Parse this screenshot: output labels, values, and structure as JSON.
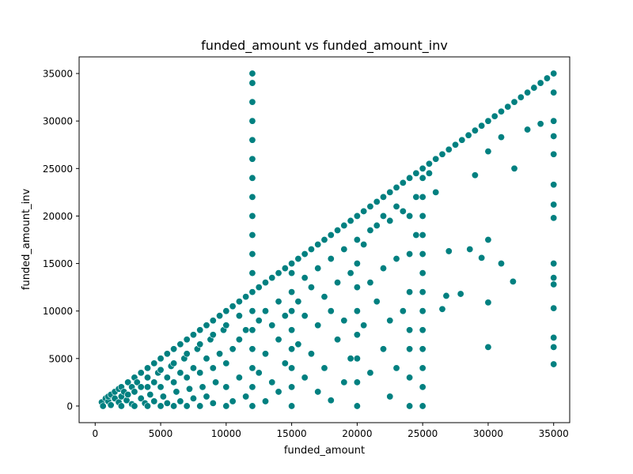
{
  "chart_data": {
    "type": "scatter",
    "title": "funded_amount vs funded_amount_inv",
    "xlabel": "funded_amount",
    "ylabel": "funded_amount_inv",
    "xlim": [
      -1225,
      36225
    ],
    "ylim": [
      -1750,
      36750
    ],
    "xticks": [
      {
        "value": 0,
        "label": "0"
      },
      {
        "value": 5000,
        "label": "5000"
      },
      {
        "value": 10000,
        "label": "10000"
      },
      {
        "value": 15000,
        "label": "15000"
      },
      {
        "value": 20000,
        "label": "20000"
      },
      {
        "value": 25000,
        "label": "25000"
      },
      {
        "value": 30000,
        "label": "30000"
      },
      {
        "value": 35000,
        "label": "35000"
      }
    ],
    "yticks": [
      {
        "value": 0,
        "label": "0"
      },
      {
        "value": 5000,
        "label": "5000"
      },
      {
        "value": 10000,
        "label": "10000"
      },
      {
        "value": 15000,
        "label": "15000"
      },
      {
        "value": 20000,
        "label": "20000"
      },
      {
        "value": 25000,
        "label": "25000"
      },
      {
        "value": 30000,
        "label": "30000"
      },
      {
        "value": 35000,
        "label": "35000"
      }
    ],
    "grid": false,
    "legend": "none",
    "marker_color": "#008080",
    "marker_edge_color": "#ffffff",
    "points": [
      [
        500,
        400
      ],
      [
        600,
        0
      ],
      [
        800,
        800
      ],
      [
        1000,
        500
      ],
      [
        1000,
        1000
      ],
      [
        1200,
        100
      ],
      [
        1200,
        1200
      ],
      [
        1500,
        800
      ],
      [
        1500,
        1500
      ],
      [
        1800,
        400
      ],
      [
        1800,
        1800
      ],
      [
        2000,
        0
      ],
      [
        2000,
        1000
      ],
      [
        2000,
        2000
      ],
      [
        2200,
        1500
      ],
      [
        2400,
        600
      ],
      [
        2500,
        2500
      ],
      [
        2500,
        1200
      ],
      [
        2800,
        200
      ],
      [
        2800,
        2000
      ],
      [
        3000,
        0
      ],
      [
        3000,
        1500
      ],
      [
        3000,
        3000
      ],
      [
        3200,
        2500
      ],
      [
        3500,
        800
      ],
      [
        3500,
        3500
      ],
      [
        3500,
        2000
      ],
      [
        3800,
        300
      ],
      [
        4000,
        0
      ],
      [
        4000,
        2000
      ],
      [
        4000,
        4000
      ],
      [
        4000,
        3000
      ],
      [
        4200,
        1200
      ],
      [
        4500,
        4500
      ],
      [
        4500,
        2500
      ],
      [
        4500,
        500
      ],
      [
        4800,
        3500
      ],
      [
        5000,
        0
      ],
      [
        5000,
        2000
      ],
      [
        5000,
        5000
      ],
      [
        5000,
        3800
      ],
      [
        5200,
        1000
      ],
      [
        5500,
        5500
      ],
      [
        5500,
        3000
      ],
      [
        5500,
        300
      ],
      [
        5800,
        4200
      ],
      [
        6000,
        0
      ],
      [
        6000,
        2500
      ],
      [
        6000,
        6000
      ],
      [
        6000,
        4500
      ],
      [
        6200,
        1500
      ],
      [
        6500,
        6500
      ],
      [
        6500,
        3500
      ],
      [
        6500,
        500
      ],
      [
        6800,
        5000
      ],
      [
        7000,
        0
      ],
      [
        7000,
        3000
      ],
      [
        7000,
        7000
      ],
      [
        7000,
        5500
      ],
      [
        7200,
        1800
      ],
      [
        7500,
        7500
      ],
      [
        7500,
        4000
      ],
      [
        7500,
        800
      ],
      [
        7800,
        6000
      ],
      [
        8000,
        0
      ],
      [
        8000,
        3500
      ],
      [
        8000,
        8000
      ],
      [
        8000,
        6500
      ],
      [
        8200,
        2000
      ],
      [
        8500,
        8500
      ],
      [
        8500,
        5000
      ],
      [
        8500,
        1000
      ],
      [
        8800,
        7000
      ],
      [
        9000,
        300
      ],
      [
        9000,
        4000
      ],
      [
        9000,
        9000
      ],
      [
        9000,
        7500
      ],
      [
        9200,
        2500
      ],
      [
        9500,
        9500
      ],
      [
        9500,
        5500
      ],
      [
        9800,
        8000
      ],
      [
        10000,
        0
      ],
      [
        10000,
        4500
      ],
      [
        10000,
        10000
      ],
      [
        10000,
        8500
      ],
      [
        10000,
        2000
      ],
      [
        10500,
        10500
      ],
      [
        10500,
        6000
      ],
      [
        10500,
        500
      ],
      [
        11000,
        11000
      ],
      [
        11000,
        7000
      ],
      [
        11000,
        3000
      ],
      [
        11000,
        9500
      ],
      [
        11500,
        11500
      ],
      [
        11500,
        8000
      ],
      [
        11500,
        1000
      ],
      [
        12000,
        0
      ],
      [
        12000,
        2000
      ],
      [
        12000,
        4000
      ],
      [
        12000,
        6000
      ],
      [
        12000,
        8000
      ],
      [
        12000,
        10000
      ],
      [
        12000,
        12000
      ],
      [
        12000,
        14000
      ],
      [
        12000,
        16000
      ],
      [
        12000,
        18000
      ],
      [
        12000,
        20000
      ],
      [
        12000,
        22000
      ],
      [
        12000,
        24000
      ],
      [
        12000,
        26000
      ],
      [
        12000,
        28000
      ],
      [
        12000,
        30000
      ],
      [
        12000,
        32000
      ],
      [
        12000,
        34000
      ],
      [
        12000,
        35000
      ],
      [
        12500,
        12500
      ],
      [
        12500,
        9000
      ],
      [
        12500,
        3500
      ],
      [
        13000,
        13000
      ],
      [
        13000,
        10000
      ],
      [
        13000,
        5500
      ],
      [
        13000,
        500
      ],
      [
        13500,
        13500
      ],
      [
        13500,
        8500
      ],
      [
        13500,
        2500
      ],
      [
        14000,
        14000
      ],
      [
        14000,
        11000
      ],
      [
        14000,
        7000
      ],
      [
        14000,
        1500
      ],
      [
        14500,
        14500
      ],
      [
        14500,
        9500
      ],
      [
        14500,
        4500
      ],
      [
        15000,
        0
      ],
      [
        15000,
        2000
      ],
      [
        15000,
        4000
      ],
      [
        15000,
        6000
      ],
      [
        15000,
        8000
      ],
      [
        15000,
        10000
      ],
      [
        15000,
        12000
      ],
      [
        15000,
        14000
      ],
      [
        15000,
        15000
      ],
      [
        15500,
        15500
      ],
      [
        15500,
        11000
      ],
      [
        15500,
        6500
      ],
      [
        16000,
        16000
      ],
      [
        16000,
        13500
      ],
      [
        16000,
        9500
      ],
      [
        16000,
        3000
      ],
      [
        16500,
        16500
      ],
      [
        16500,
        12500
      ],
      [
        16500,
        5500
      ],
      [
        17000,
        17000
      ],
      [
        17000,
        14500
      ],
      [
        17000,
        8500
      ],
      [
        17000,
        1500
      ],
      [
        17500,
        17500
      ],
      [
        17500,
        11500
      ],
      [
        17500,
        4000
      ],
      [
        18000,
        18000
      ],
      [
        18000,
        15500
      ],
      [
        18000,
        10000
      ],
      [
        18000,
        600
      ],
      [
        18500,
        18500
      ],
      [
        18500,
        13000
      ],
      [
        18500,
        7000
      ],
      [
        19000,
        19000
      ],
      [
        19000,
        16500
      ],
      [
        19000,
        9000
      ],
      [
        19000,
        2500
      ],
      [
        19500,
        19500
      ],
      [
        19500,
        14000
      ],
      [
        19500,
        5000
      ],
      [
        20000,
        0
      ],
      [
        20000,
        2500
      ],
      [
        20000,
        5000
      ],
      [
        20000,
        7500
      ],
      [
        20000,
        10000
      ],
      [
        20000,
        12500
      ],
      [
        20000,
        15000
      ],
      [
        20000,
        17500
      ],
      [
        20000,
        20000
      ],
      [
        20500,
        20500
      ],
      [
        20500,
        17000
      ],
      [
        20500,
        8500
      ],
      [
        21000,
        21000
      ],
      [
        21000,
        18500
      ],
      [
        21000,
        13000
      ],
      [
        21000,
        3500
      ],
      [
        21500,
        21500
      ],
      [
        21500,
        19000
      ],
      [
        21500,
        11000
      ],
      [
        22000,
        22000
      ],
      [
        22000,
        20000
      ],
      [
        22000,
        14500
      ],
      [
        22000,
        6000
      ],
      [
        22500,
        22500
      ],
      [
        22500,
        19500
      ],
      [
        22500,
        9000
      ],
      [
        22500,
        1000
      ],
      [
        23000,
        23000
      ],
      [
        23000,
        21000
      ],
      [
        23000,
        15500
      ],
      [
        23000,
        4000
      ],
      [
        23500,
        23500
      ],
      [
        23500,
        20500
      ],
      [
        23500,
        10000
      ],
      [
        24000,
        0
      ],
      [
        24000,
        3000
      ],
      [
        24000,
        6000
      ],
      [
        24000,
        8000
      ],
      [
        24000,
        12000
      ],
      [
        24000,
        16000
      ],
      [
        24000,
        20000
      ],
      [
        24000,
        24000
      ],
      [
        24500,
        24500
      ],
      [
        24500,
        22000
      ],
      [
        24500,
        18000
      ],
      [
        25000,
        0
      ],
      [
        25000,
        2000
      ],
      [
        25000,
        4000
      ],
      [
        25000,
        6000
      ],
      [
        25000,
        8000
      ],
      [
        25000,
        10000
      ],
      [
        25000,
        12000
      ],
      [
        25000,
        14000
      ],
      [
        25000,
        16000
      ],
      [
        25000,
        18000
      ],
      [
        25000,
        20000
      ],
      [
        25000,
        22000
      ],
      [
        25000,
        24000
      ],
      [
        25000,
        25000
      ],
      [
        25500,
        25500
      ],
      [
        25500,
        24500
      ],
      [
        26000,
        26000
      ],
      [
        26000,
        22500
      ],
      [
        26500,
        10200
      ],
      [
        26500,
        26500
      ],
      [
        26800,
        11600
      ],
      [
        27000,
        27000
      ],
      [
        27000,
        16300
      ],
      [
        27500,
        27500
      ],
      [
        27900,
        11800
      ],
      [
        28000,
        28000
      ],
      [
        28500,
        28500
      ],
      [
        28600,
        16500
      ],
      [
        29000,
        29000
      ],
      [
        29000,
        24300
      ],
      [
        29500,
        29500
      ],
      [
        29500,
        15600
      ],
      [
        30000,
        30000
      ],
      [
        30000,
        17500
      ],
      [
        30000,
        10900
      ],
      [
        30000,
        6200
      ],
      [
        30000,
        26800
      ],
      [
        30500,
        30500
      ],
      [
        31000,
        31000
      ],
      [
        31000,
        15000
      ],
      [
        31000,
        28300
      ],
      [
        31500,
        31500
      ],
      [
        31900,
        13100
      ],
      [
        32000,
        32000
      ],
      [
        32000,
        25000
      ],
      [
        32500,
        32500
      ],
      [
        33000,
        33000
      ],
      [
        33000,
        29100
      ],
      [
        33500,
        33500
      ],
      [
        34000,
        34000
      ],
      [
        34000,
        29700
      ],
      [
        34500,
        34500
      ],
      [
        35000,
        35000
      ],
      [
        35000,
        33000
      ],
      [
        35000,
        30000
      ],
      [
        35000,
        28400
      ],
      [
        35000,
        26500
      ],
      [
        35000,
        23300
      ],
      [
        35000,
        21200
      ],
      [
        35000,
        19800
      ],
      [
        35000,
        15000
      ],
      [
        35000,
        13500
      ],
      [
        35000,
        12800
      ],
      [
        35000,
        10300
      ],
      [
        35000,
        7200
      ],
      [
        35000,
        6200
      ],
      [
        35000,
        4400
      ]
    ]
  }
}
